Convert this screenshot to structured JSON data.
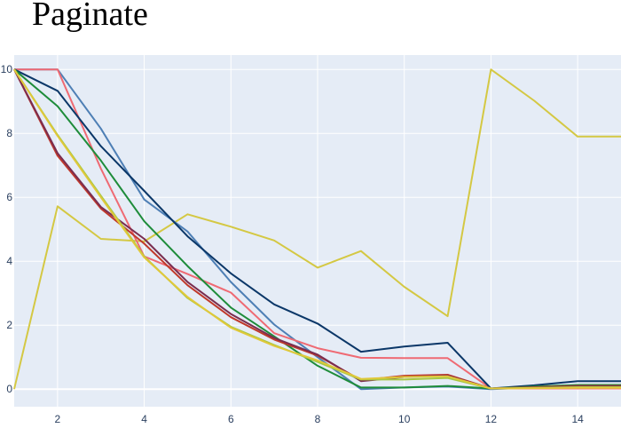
{
  "title": "Paginate",
  "chart_data": {
    "type": "line",
    "title": "Paginate",
    "xlabel": "",
    "ylabel": "",
    "xlim": [
      1,
      15
    ],
    "ylim": [
      -0.55,
      10.45
    ],
    "grid": true,
    "xticks": [
      2,
      4,
      6,
      8,
      10,
      12,
      14
    ],
    "yticks": [
      0,
      2,
      4,
      6,
      8,
      10
    ],
    "x": [
      1,
      2,
      3,
      4,
      5,
      6,
      7,
      8,
      9,
      10,
      11,
      12,
      13,
      14,
      15
    ],
    "colors": {
      "plot_bg": "#e5ecf6",
      "grid": "#ffffff",
      "tick_text": "#2a3f5f"
    },
    "series": [
      {
        "color": "#d4c843",
        "values": [
          0,
          5.72,
          4.7,
          4.62,
          5.47,
          5.08,
          4.65,
          3.8,
          4.32,
          3.2,
          2.28,
          10,
          9.02,
          7.9,
          7.9
        ]
      },
      {
        "color": "#4e7fb5",
        "values": [
          10,
          10,
          8.15,
          5.93,
          4.93,
          3.35,
          2.02,
          1.0,
          0.0,
          0.05,
          0.08,
          0.0,
          0.05,
          0.1,
          0.1
        ]
      },
      {
        "color": "#ef6a73",
        "values": [
          10,
          10,
          6.9,
          4.15,
          3.6,
          3.02,
          1.75,
          1.28,
          0.98,
          0.97,
          0.97,
          0.02,
          0.02,
          0.02,
          0.02
        ]
      },
      {
        "color": "#0b3768",
        "values": [
          10,
          9.33,
          7.6,
          6.2,
          4.78,
          3.62,
          2.65,
          2.05,
          1.17,
          1.33,
          1.45,
          0.02,
          0.12,
          0.25,
          0.25
        ]
      },
      {
        "color": "#1e8c3a",
        "values": [
          10,
          8.85,
          7.15,
          5.25,
          3.85,
          2.55,
          1.65,
          0.73,
          0.05,
          0.05,
          0.1,
          0.02,
          0.08,
          0.13,
          0.13
        ]
      },
      {
        "color": "#c0392b",
        "values": [
          10,
          7.3,
          5.65,
          4.55,
          3.25,
          2.25,
          1.55,
          1.05,
          0.28,
          0.42,
          0.45,
          0.02,
          0.06,
          0.1,
          0.1
        ]
      },
      {
        "color": "#7a2d4f",
        "values": [
          10,
          7.38,
          5.7,
          4.7,
          3.35,
          2.35,
          1.6,
          1.08,
          0.25,
          0.38,
          0.42,
          0.02,
          0.05,
          0.08,
          0.08
        ]
      },
      {
        "color": "#a7c842",
        "values": [
          10,
          7.95,
          6.05,
          4.15,
          2.85,
          1.95,
          1.38,
          0.85,
          0.3,
          0.3,
          0.35,
          0.02,
          0.04,
          0.06,
          0.06
        ]
      },
      {
        "color": "#e0c83a",
        "values": [
          10,
          7.92,
          6.0,
          4.12,
          2.88,
          1.92,
          1.35,
          0.9,
          0.32,
          0.38,
          0.4,
          0.02,
          0.03,
          0.04,
          0.04
        ]
      }
    ]
  }
}
